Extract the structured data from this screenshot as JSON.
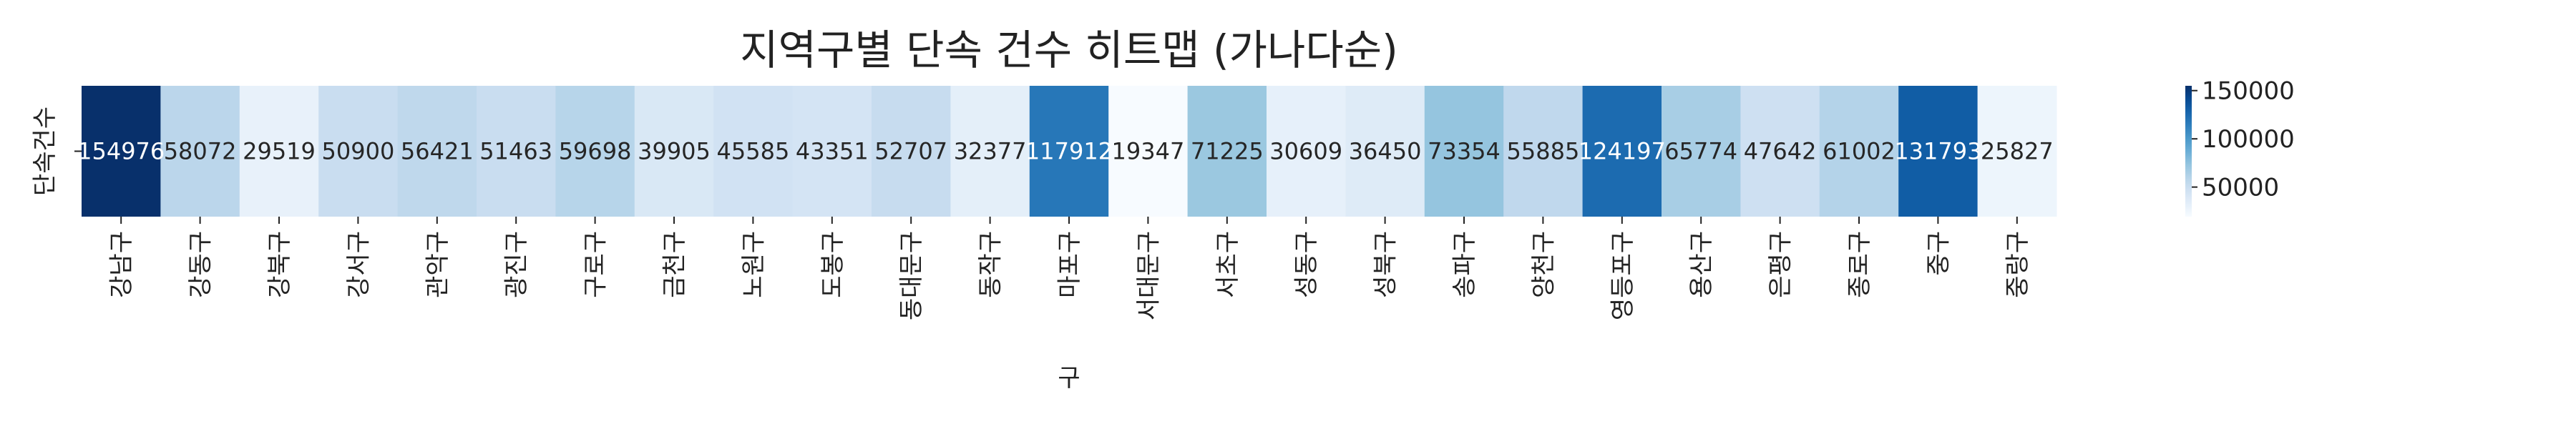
{
  "chart_data": {
    "type": "heatmap",
    "title": "지역구별 단속 건수 히트맵 (가나다순)",
    "xlabel": "구",
    "ylabel": "",
    "row_labels": [
      "단속건수"
    ],
    "categories": [
      "강남구",
      "강동구",
      "강북구",
      "강서구",
      "관악구",
      "광진구",
      "구로구",
      "금천구",
      "노원구",
      "도봉구",
      "동대문구",
      "동작구",
      "마포구",
      "서대문구",
      "서초구",
      "성동구",
      "성북구",
      "송파구",
      "양천구",
      "영등포구",
      "용산구",
      "은평구",
      "종로구",
      "중구",
      "중랑구"
    ],
    "values": [
      154976,
      58072,
      29519,
      50900,
      56421,
      51463,
      59698,
      39905,
      45585,
      43351,
      52707,
      32377,
      117912,
      19347,
      71225,
      30609,
      36450,
      73354,
      55885,
      124197,
      65774,
      47642,
      61002,
      131793,
      25827
    ],
    "colorbar": {
      "ticks": [
        50000,
        100000,
        150000
      ],
      "tick_labels": [
        "50000",
        "100000",
        "150000"
      ],
      "range": [
        19347,
        154976
      ],
      "colormap": "Blues"
    }
  }
}
